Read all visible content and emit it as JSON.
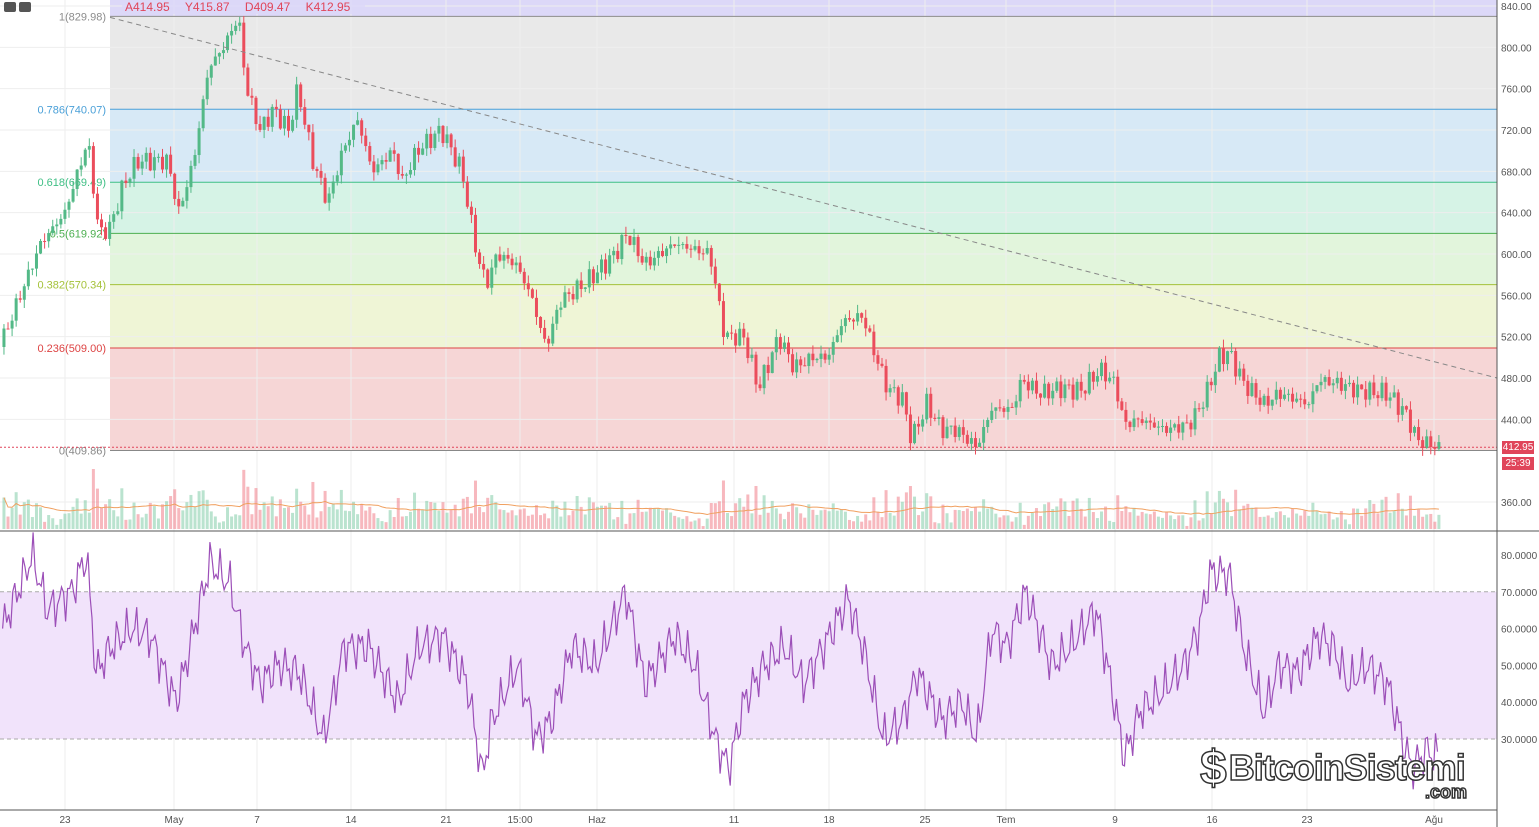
{
  "header": {
    "open": "A414.95",
    "high": "Y415.87",
    "low": "D409.47",
    "close": "K412.95"
  },
  "price_badge": "412.95",
  "timer_badge": "25:39",
  "watermark": "BitcoinSistemi.com",
  "chart_data": [
    {
      "type": "candlestick",
      "title": "Price",
      "price_axis": {
        "ticks": [
          "840.00",
          "800.00",
          "760.00",
          "720.00",
          "680.00",
          "640.00",
          "600.00",
          "560.00",
          "520.00",
          "480.00",
          "440.00",
          "360.00"
        ],
        "range": [
          360,
          840
        ]
      },
      "fib_levels": [
        {
          "ratio": "1",
          "value": 829.98,
          "label": "1(829.98)",
          "color": "#8c8c8c"
        },
        {
          "ratio": "0.786",
          "value": 740.07,
          "label": "0.786(740.07)",
          "color": "#4aa0d8"
        },
        {
          "ratio": "0.618",
          "value": 669.49,
          "label": "0.618(669.49)",
          "color": "#3fbf85"
        },
        {
          "ratio": "0.5",
          "value": 619.92,
          "label": "0.5(619.92)",
          "color": "#4caf50"
        },
        {
          "ratio": "0.382",
          "value": 570.34,
          "label": "0.382(570.34)",
          "color": "#a5c23a"
        },
        {
          "ratio": "0.236",
          "value": 509.0,
          "label": "0.236(509.00)",
          "color": "#d44"
        },
        {
          "ratio": "0",
          "value": 409.86,
          "label": "0(409.86)",
          "color": "#888"
        }
      ],
      "x_labels": [
        "23",
        "May",
        "7",
        "14",
        "21",
        "15:00",
        "Haz",
        "11",
        "18",
        "25",
        "Tem",
        "9",
        "16",
        "23",
        "Ağu"
      ],
      "close_path_days": [
        [
          -0.2,
          510
        ],
        [
          1.3,
          560
        ],
        [
          2.8,
          610
        ],
        [
          4.6,
          640
        ],
        [
          6.3,
          710
        ],
        [
          7.1,
          620
        ],
        [
          7.9,
          625
        ],
        [
          9,
          670
        ],
        [
          10,
          690
        ],
        [
          12.2,
          690
        ],
        [
          13,
          640
        ],
        [
          14.1,
          690
        ],
        [
          15.2,
          780
        ],
        [
          16.3,
          800
        ],
        [
          17.4,
          830
        ],
        [
          18,
          760
        ],
        [
          19,
          720
        ],
        [
          20,
          740
        ],
        [
          21.1,
          720
        ],
        [
          21.8,
          760
        ],
        [
          22.9,
          690
        ],
        [
          24,
          650
        ],
        [
          25.1,
          700
        ],
        [
          26.2,
          730
        ],
        [
          27.3,
          680
        ],
        [
          28.8,
          700
        ],
        [
          29.5,
          670
        ],
        [
          30.6,
          700
        ],
        [
          32.4,
          720
        ],
        [
          33.9,
          680
        ],
        [
          35,
          600
        ],
        [
          35.7,
          570
        ],
        [
          36.5,
          600
        ],
        [
          37.9,
          590
        ],
        [
          39,
          560
        ],
        [
          40.1,
          510
        ],
        [
          41.2,
          555
        ],
        [
          42.3,
          565
        ],
        [
          43.7,
          580
        ],
        [
          45.2,
          600
        ],
        [
          46.1,
          620
        ],
        [
          47.4,
          590
        ],
        [
          49.6,
          610
        ],
        [
          52.2,
          600
        ],
        [
          53.3,
          520
        ],
        [
          54.7,
          520
        ],
        [
          55.8,
          470
        ],
        [
          57.3,
          520
        ],
        [
          58.4,
          490
        ],
        [
          59.8,
          500
        ],
        [
          60.9,
          500
        ],
        [
          62,
          535
        ],
        [
          63.5,
          540
        ],
        [
          64.2,
          510
        ],
        [
          65.3,
          470
        ],
        [
          66.4,
          460
        ],
        [
          67.1,
          420
        ],
        [
          68.2,
          455
        ],
        [
          69.3,
          430
        ],
        [
          70.4,
          430
        ],
        [
          71.9,
          413
        ],
        [
          73,
          450
        ],
        [
          74.5,
          450
        ],
        [
          75.2,
          478
        ],
        [
          76.6,
          465
        ],
        [
          78.1,
          470
        ],
        [
          79.6,
          468
        ],
        [
          81,
          488
        ],
        [
          82.1,
          475
        ],
        [
          82.8,
          435
        ],
        [
          83.9,
          440
        ],
        [
          85.8,
          430
        ],
        [
          87.6,
          435
        ],
        [
          88.7,
          460
        ],
        [
          89.8,
          500
        ],
        [
          90.5,
          505
        ],
        [
          91.6,
          475
        ],
        [
          93.1,
          455
        ],
        [
          94.2,
          465
        ],
        [
          96.4,
          455
        ],
        [
          97.1,
          478
        ],
        [
          98.5,
          475
        ],
        [
          100,
          468
        ],
        [
          102.2,
          465
        ],
        [
          103.6,
          445
        ],
        [
          104.4,
          420
        ],
        [
          106,
          413
        ]
      ],
      "trendline": {
        "from": [
          829.98,
          "start"
        ],
        "to": [
          480,
          "end"
        ],
        "style": "dashed"
      }
    },
    {
      "type": "line",
      "title": "RSI",
      "y_ticks": [
        "80.0000",
        "70.0000",
        "60.0000",
        "50.0000",
        "40.0000",
        "30.0000"
      ],
      "range": [
        16,
        84
      ],
      "bands": [
        30,
        70
      ],
      "color": "#9c4fb8",
      "values_days": [
        [
          0,
          60
        ],
        [
          2.2,
          80
        ],
        [
          3.3,
          65
        ],
        [
          5.1,
          70
        ],
        [
          6.2,
          80
        ],
        [
          6.9,
          48
        ],
        [
          8,
          55
        ],
        [
          9.5,
          60
        ],
        [
          10.9,
          58
        ],
        [
          12.8,
          40
        ],
        [
          13.5,
          50
        ],
        [
          15.3,
          78
        ],
        [
          16.8,
          72
        ],
        [
          17.9,
          55
        ],
        [
          19,
          45
        ],
        [
          20.4,
          50
        ],
        [
          21.9,
          48
        ],
        [
          23.7,
          30
        ],
        [
          25.2,
          55
        ],
        [
          27,
          55
        ],
        [
          29.2,
          40
        ],
        [
          30.7,
          55
        ],
        [
          32.5,
          58
        ],
        [
          34.3,
          45
        ],
        [
          35.4,
          20
        ],
        [
          36.1,
          35
        ],
        [
          38,
          50
        ],
        [
          39.4,
          30
        ],
        [
          40.5,
          35
        ],
        [
          42,
          55
        ],
        [
          43.8,
          50
        ],
        [
          46,
          70
        ],
        [
          47.4,
          45
        ],
        [
          49.6,
          58
        ],
        [
          51.1,
          50
        ],
        [
          52.6,
          30
        ],
        [
          53.6,
          22
        ],
        [
          54.7,
          40
        ],
        [
          56.2,
          50
        ],
        [
          57.7,
          55
        ],
        [
          59.1,
          45
        ],
        [
          61.3,
          60
        ],
        [
          62.4,
          68
        ],
        [
          63.5,
          55
        ],
        [
          65,
          30
        ],
        [
          66.4,
          35
        ],
        [
          67.5,
          48
        ],
        [
          69.3,
          35
        ],
        [
          70.8,
          40
        ],
        [
          71.9,
          30
        ],
        [
          73,
          60
        ],
        [
          74.1,
          55
        ],
        [
          75.5,
          70
        ],
        [
          77.4,
          50
        ],
        [
          78.8,
          55
        ],
        [
          80.7,
          65
        ],
        [
          81.8,
          45
        ],
        [
          82.8,
          25
        ],
        [
          84,
          38
        ],
        [
          85.4,
          42
        ],
        [
          87.2,
          50
        ],
        [
          88.3,
          60
        ],
        [
          89.1,
          75
        ],
        [
          90.5,
          75
        ],
        [
          91.6,
          55
        ],
        [
          93.1,
          37
        ],
        [
          94.2,
          50
        ],
        [
          95.6,
          48
        ],
        [
          97.1,
          58
        ],
        [
          98.2,
          55
        ],
        [
          99.3,
          45
        ],
        [
          100.7,
          50
        ],
        [
          102.2,
          45
        ],
        [
          103.3,
          30
        ],
        [
          104,
          22
        ],
        [
          105.1,
          27
        ],
        [
          106,
          25
        ]
      ]
    }
  ]
}
